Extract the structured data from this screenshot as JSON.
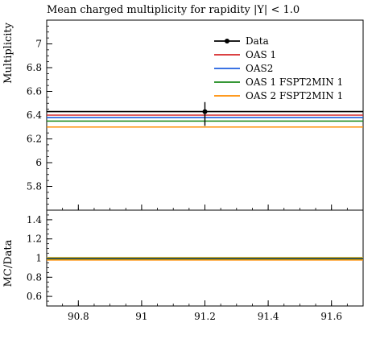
{
  "chart_data": [
    {
      "type": "line",
      "title": "Mean charged multiplicity for rapidity |Y| < 1.0",
      "xlabel": "",
      "ylabel": "Multiplicity",
      "xlim": [
        90.7,
        91.7
      ],
      "ylim": [
        5.6,
        7.2
      ],
      "x_ticks": [
        90.8,
        91.0,
        91.2,
        91.4,
        91.6
      ],
      "x_tick_labels": [
        "90.8",
        "91",
        "91.2",
        "91.4",
        "91.6"
      ],
      "y_ticks": [
        5.8,
        6.0,
        6.2,
        6.4,
        6.6,
        6.8,
        7.0
      ],
      "y_tick_labels": [
        "5.8",
        "6",
        "6.2",
        "6.4",
        "6.6",
        "6.8",
        "7"
      ],
      "legend_position": "top-right",
      "data": {
        "name": "Data",
        "x": 91.2,
        "y": 6.43,
        "err_low": 0.12,
        "err_high": 0.08,
        "color": "#000000"
      },
      "series": [
        {
          "name": "OAS 1",
          "x": [
            90.7,
            91.7
          ],
          "values": [
            6.4,
            6.4
          ],
          "color": "#d62728"
        },
        {
          "name": "OAS2",
          "x": [
            90.7,
            91.7
          ],
          "values": [
            6.38,
            6.38
          ],
          "color": "#1f5fe0"
        },
        {
          "name": "OAS 1 FSPT2MIN 1",
          "x": [
            90.7,
            91.7
          ],
          "values": [
            6.35,
            6.35
          ],
          "color": "#1a8a1a"
        },
        {
          "name": "OAS 2 FSPT2MIN 1",
          "x": [
            90.7,
            91.7
          ],
          "values": [
            6.3,
            6.3
          ],
          "color": "#ff8c00"
        }
      ]
    },
    {
      "type": "line",
      "xlabel": "",
      "ylabel": "MC/Data",
      "xlim": [
        90.7,
        91.7
      ],
      "ylim": [
        0.5,
        1.5
      ],
      "y_ticks": [
        0.6,
        0.8,
        1.0,
        1.2,
        1.4
      ],
      "y_tick_labels": [
        "0.6",
        "0.8",
        "1",
        "1.2",
        "1.4"
      ],
      "band": {
        "low": 0.985,
        "high": 1.012,
        "color": "#f4ef3c"
      },
      "series": [
        {
          "name": "OAS 1",
          "x": [
            90.7,
            91.7
          ],
          "values": [
            0.995,
            0.995
          ],
          "color": "#d62728"
        },
        {
          "name": "OAS2",
          "x": [
            90.7,
            91.7
          ],
          "values": [
            0.992,
            0.992
          ],
          "color": "#1f5fe0"
        },
        {
          "name": "OAS 1 FSPT2MIN 1",
          "x": [
            90.7,
            91.7
          ],
          "values": [
            0.988,
            0.988
          ],
          "color": "#1a8a1a"
        },
        {
          "name": "OAS 2 FSPT2MIN 1",
          "x": [
            90.7,
            91.7
          ],
          "values": [
            0.98,
            0.98
          ],
          "color": "#ff8c00"
        }
      ]
    }
  ]
}
